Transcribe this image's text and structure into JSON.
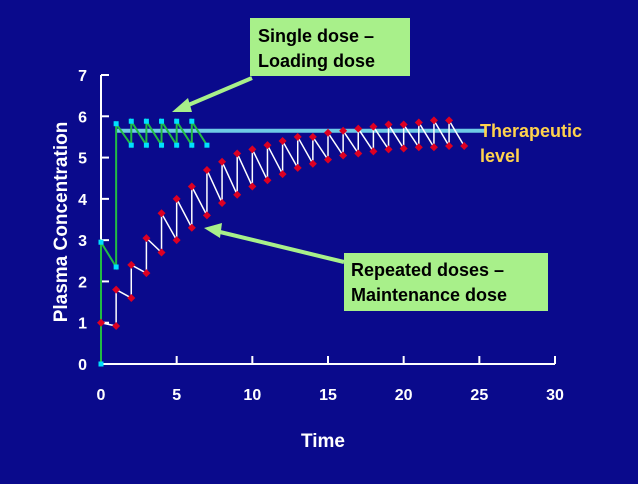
{
  "chart_data": {
    "type": "line",
    "xlabel": "Time",
    "ylabel": "Plasma Concentration",
    "xlim": [
      0,
      30
    ],
    "ylim": [
      0,
      7
    ],
    "xticks": [
      "0",
      "5",
      "10",
      "15",
      "20",
      "25",
      "30"
    ],
    "yticks": [
      "0",
      "1",
      "2",
      "3",
      "4",
      "5",
      "6",
      "7"
    ],
    "grid": false,
    "therapeutic_level": 5.65,
    "callouts": {
      "single_dose": [
        "Single dose –",
        "Loading dose"
      ],
      "repeated_doses": [
        "Repeated doses –",
        "Maintenance dose"
      ],
      "therapeutic": [
        "Therapeutic",
        "level"
      ]
    },
    "series": [
      {
        "name": "",
        "color": "#00e0ff",
        "line_color": "#22bb44",
        "points": [
          [
            0,
            0
          ],
          [
            0,
            2.95
          ],
          [
            1,
            2.35
          ],
          [
            1,
            5.82
          ],
          [
            2,
            5.3
          ],
          [
            2,
            5.88
          ],
          [
            3,
            5.3
          ],
          [
            3,
            5.88
          ],
          [
            4,
            5.3
          ],
          [
            4,
            5.88
          ],
          [
            5,
            5.3
          ],
          [
            5,
            5.88
          ],
          [
            6,
            5.3
          ],
          [
            6,
            5.88
          ],
          [
            7,
            5.3
          ]
        ]
      },
      {
        "name": "",
        "color": "#dd0022",
        "line_color": "#ffffff",
        "points": [
          [
            0,
            1.0
          ],
          [
            1,
            0.92
          ],
          [
            1,
            1.8
          ],
          [
            2,
            1.6
          ],
          [
            2,
            2.4
          ],
          [
            3,
            2.2
          ],
          [
            3,
            3.05
          ],
          [
            4,
            2.7
          ],
          [
            4,
            3.65
          ],
          [
            5,
            3.0
          ],
          [
            5,
            4.0
          ],
          [
            6,
            3.3
          ],
          [
            6,
            4.3
          ],
          [
            7,
            3.6
          ],
          [
            7,
            4.7
          ],
          [
            8,
            3.9
          ],
          [
            8,
            4.9
          ],
          [
            9,
            4.1
          ],
          [
            9,
            5.1
          ],
          [
            10,
            4.3
          ],
          [
            10,
            5.2
          ],
          [
            11,
            4.45
          ],
          [
            11,
            5.3
          ],
          [
            12,
            4.6
          ],
          [
            12,
            5.4
          ],
          [
            13,
            4.75
          ],
          [
            13,
            5.5
          ],
          [
            14,
            4.85
          ],
          [
            14,
            5.5
          ],
          [
            15,
            4.95
          ],
          [
            15,
            5.6
          ],
          [
            16,
            5.05
          ],
          [
            16,
            5.65
          ],
          [
            17,
            5.1
          ],
          [
            17,
            5.7
          ],
          [
            18,
            5.15
          ],
          [
            18,
            5.75
          ],
          [
            19,
            5.2
          ],
          [
            19,
            5.8
          ],
          [
            20,
            5.22
          ],
          [
            20,
            5.8
          ],
          [
            21,
            5.25
          ],
          [
            21,
            5.85
          ],
          [
            22,
            5.25
          ],
          [
            22,
            5.9
          ],
          [
            23,
            5.28
          ],
          [
            23,
            5.9
          ],
          [
            24,
            5.28
          ]
        ]
      }
    ]
  }
}
